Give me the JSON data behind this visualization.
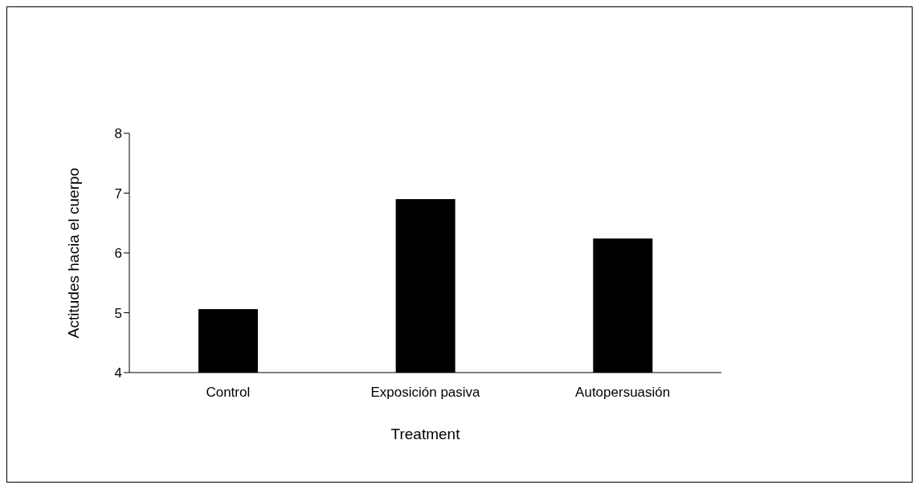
{
  "chart_data": {
    "type": "bar",
    "xlabel": "Treatment",
    "ylabel": "Actitudes hacia el cuerpo",
    "categories": [
      "Control",
      "Exposición pasiva",
      "Autopersuasión"
    ],
    "values": [
      5.06,
      6.9,
      6.24
    ],
    "color": "#000000",
    "ylim": [
      4,
      8
    ],
    "yticks": [
      4,
      5,
      6,
      7,
      8
    ],
    "grid": false,
    "legend": false
  }
}
